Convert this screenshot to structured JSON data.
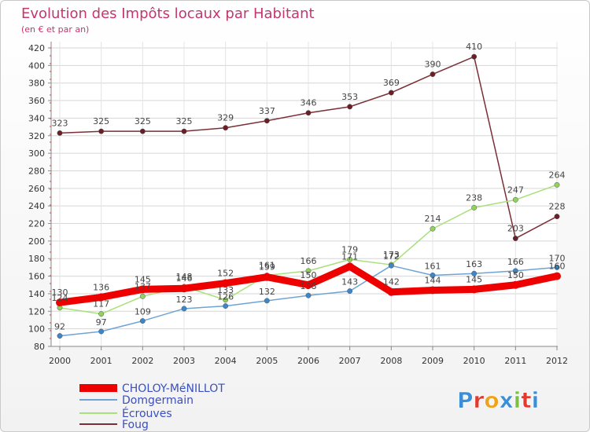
{
  "chart_data": {
    "type": "line",
    "title": "Evolution des Impôts locaux par Habitant",
    "subtitle": "(en € et par an)",
    "xlabel": "",
    "ylabel": "",
    "categories": [
      "2000",
      "2001",
      "2002",
      "2003",
      "2004",
      "2005",
      "2006",
      "2007",
      "2008",
      "2009",
      "2010",
      "2011",
      "2012"
    ],
    "ylim": [
      80,
      420
    ],
    "yticks": [
      "80",
      "100",
      "120",
      "140",
      "160",
      "180",
      "200",
      "220",
      "240",
      "260",
      "280",
      "300",
      "320",
      "340",
      "360",
      "380",
      "400",
      "420"
    ],
    "grid": true,
    "legend_position": "bottom-left",
    "series": [
      {
        "name": "CHOLOY-MéNILLOT",
        "color": "#ee0000",
        "labels": [
          "130",
          "136",
          "145",
          "146",
          "152",
          "159",
          "150",
          "171",
          "142",
          "144",
          "145",
          "150",
          "160"
        ],
        "values": [
          130,
          136,
          145,
          146,
          152,
          159,
          150,
          171,
          142,
          144,
          145,
          150,
          160
        ]
      },
      {
        "name": "Domgermain",
        "color": "#6fa3d6",
        "labels": [
          "92",
          "97",
          "109",
          "123",
          "126",
          "132",
          "138",
          "143",
          "172",
          "161",
          "163",
          "166",
          "170"
        ],
        "values": [
          92,
          97,
          109,
          123,
          126,
          132,
          138,
          143,
          172,
          161,
          163,
          166,
          170
        ]
      },
      {
        "name": "Écrouves",
        "color": "#a8e07a",
        "labels": [
          "124",
          "117",
          "137",
          "148",
          "133",
          "161",
          "166",
          "179",
          "173",
          "214",
          "238",
          "247",
          "264"
        ],
        "values": [
          124,
          117,
          137,
          148,
          133,
          161,
          166,
          179,
          173,
          214,
          238,
          247,
          264
        ]
      },
      {
        "name": "Foug",
        "color": "#7a2f36",
        "labels": [
          "323",
          "325",
          "325",
          "325",
          "329",
          "337",
          "346",
          "353",
          "369",
          "390",
          "410",
          "203",
          "228"
        ],
        "values": [
          323,
          325,
          325,
          325,
          329,
          337,
          346,
          353,
          369,
          390,
          410,
          203,
          228
        ]
      }
    ]
  },
  "branding": {
    "logo_text": "Proxiti"
  }
}
